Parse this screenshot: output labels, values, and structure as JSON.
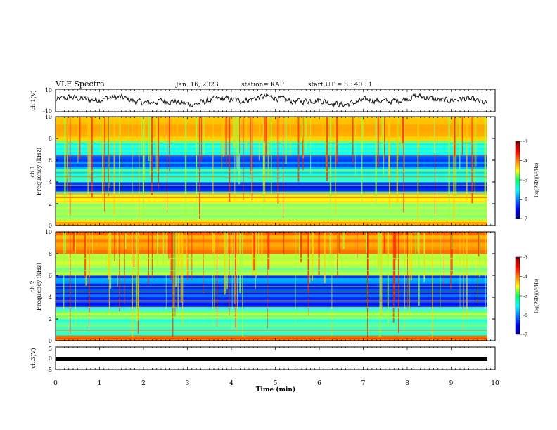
{
  "header": {
    "title": "VLF Spectra",
    "date": "Jan. 16, 2023",
    "station": "station= KAP",
    "start": "start UT =  8 : 40 : 1"
  },
  "chart_data": [
    {
      "type": "line",
      "ylabel": "ch.1(V)",
      "ylim": [
        -10,
        10
      ],
      "yticks": [
        "10",
        "-10"
      ],
      "xlim": [
        0,
        10
      ],
      "series": [
        {
          "style": "noisy waveform, baseline near 0 V, envelope about ±7 V"
        }
      ]
    },
    {
      "type": "heatmap",
      "ylabel": "ch.1\nFrequency (kHz)",
      "ylabel_lines": [
        "ch.1",
        "Frequency (kHz)"
      ],
      "ylim": [
        0,
        10
      ],
      "yticks": [
        "0",
        "2",
        "4",
        "6",
        "8",
        "10"
      ],
      "colorbar": {
        "label": "log(PSD)(V²/Hz)",
        "range": [
          -7,
          -3
        ],
        "ticks": [
          "-3",
          "-4",
          "-5",
          "-6",
          "-7"
        ]
      },
      "bands_khz": [
        {
          "from": 0.0,
          "to": 0.5,
          "level": -4.2
        },
        {
          "from": 0.5,
          "to": 2.0,
          "level": -5.0
        },
        {
          "from": 2.0,
          "to": 3.0,
          "level": -4.5
        },
        {
          "from": 3.0,
          "to": 4.0,
          "level": -6.2
        },
        {
          "from": 4.0,
          "to": 5.2,
          "level": -5.4
        },
        {
          "from": 5.2,
          "to": 6.5,
          "level": -6.0
        },
        {
          "from": 6.5,
          "to": 7.8,
          "level": -5.3
        },
        {
          "from": 7.8,
          "to": 10.0,
          "level": -4.3
        }
      ]
    },
    {
      "type": "heatmap",
      "ylabel_lines": [
        "ch.2",
        "Frequency (kHz)"
      ],
      "ylim": [
        0,
        10
      ],
      "yticks": [
        "0",
        "2",
        "4",
        "6",
        "8",
        "10"
      ],
      "colorbar": {
        "label": "log(PSD)(V²/Hz)",
        "range": [
          -7,
          -3
        ],
        "ticks": [
          "-3",
          "-4",
          "-5",
          "-6",
          "-7"
        ]
      },
      "bands_khz": [
        {
          "from": 0.0,
          "to": 0.5,
          "level": -4.0
        },
        {
          "from": 0.5,
          "to": 2.0,
          "level": -5.1
        },
        {
          "from": 2.0,
          "to": 3.0,
          "level": -5.0
        },
        {
          "from": 3.0,
          "to": 4.5,
          "level": -6.3
        },
        {
          "from": 4.5,
          "to": 6.0,
          "level": -6.1
        },
        {
          "from": 6.0,
          "to": 8.0,
          "level": -4.9
        },
        {
          "from": 8.0,
          "to": 10.0,
          "level": -4.0
        }
      ]
    },
    {
      "type": "line",
      "ylabel": "ch.3(V)",
      "ylim": [
        -5,
        5
      ],
      "yticks": [
        "5",
        "0",
        "-5"
      ],
      "xlim": [
        0,
        10
      ],
      "xlabel": "Time (min)",
      "xticks": [
        "0",
        "1",
        "2",
        "3",
        "4",
        "5",
        "6",
        "7",
        "8",
        "9",
        "10"
      ],
      "series": [
        {
          "style": "thick flat trace near -1 V ending at about 9.85 min"
        }
      ]
    }
  ]
}
